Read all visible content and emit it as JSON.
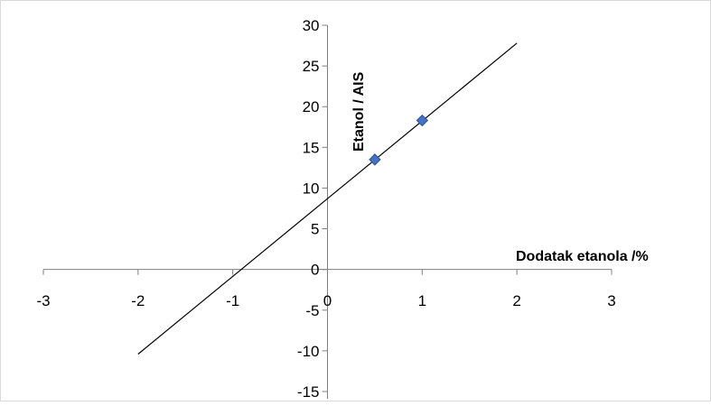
{
  "chart_data": {
    "type": "scatter",
    "title": "",
    "xlabel": "Dodatak etanola /%",
    "ylabel": "Etanol / AIS",
    "xlim": [
      -3,
      3
    ],
    "ylim": [
      -15,
      30
    ],
    "x_ticks": [
      -3,
      -2,
      -1,
      0,
      1,
      2,
      3
    ],
    "y_ticks": [
      -15,
      -10,
      -5,
      0,
      5,
      10,
      15,
      20,
      25,
      30
    ],
    "x_tick_labels": [
      "-3",
      "-2",
      "-1",
      "0",
      "1",
      "2",
      "3"
    ],
    "y_tick_labels": [
      "-15",
      "-10",
      "-5",
      "0",
      "5",
      "10",
      "15",
      "20",
      "25",
      "30"
    ],
    "series": [
      {
        "points": [
          {
            "x": 0.5,
            "y": 13.5
          },
          {
            "x": 1.0,
            "y": 18.3
          }
        ]
      }
    ],
    "trendline": {
      "from": {
        "x": -2.0,
        "y": -10.4
      },
      "to": {
        "x": 2.0,
        "y": 27.8
      }
    },
    "grid": false,
    "legend": "none",
    "colors": {
      "marker": "#4472C4",
      "marker_edge": "#2F528F",
      "line": "#000000",
      "axis": "#808080"
    }
  }
}
